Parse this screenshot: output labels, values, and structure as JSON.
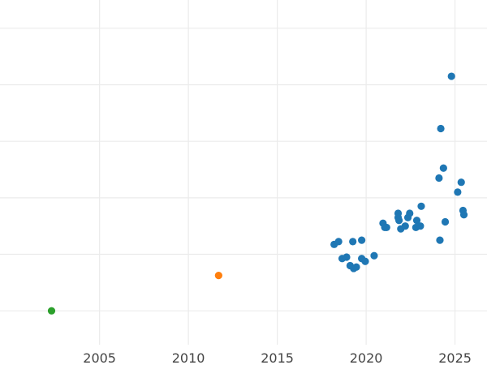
{
  "chart_data": {
    "type": "scatter",
    "xlim": [
      1999.4,
      2026.8
    ],
    "ylim": [
      -1.2,
      11
    ],
    "grid": true,
    "x_ticks": [
      2005,
      2010,
      2015,
      2020,
      2025
    ],
    "x_tick_labels": [
      "2005",
      "2010",
      "2015",
      "2020",
      "2025"
    ],
    "y_gridlines": [
      0,
      2,
      4,
      6,
      8,
      10
    ],
    "series": [
      {
        "color": "#1f77b4",
        "points": [
          {
            "x": 2018.2,
            "y": 2.35
          },
          {
            "x": 2018.45,
            "y": 2.45
          },
          {
            "x": 2018.65,
            "y": 1.85
          },
          {
            "x": 2018.9,
            "y": 1.9
          },
          {
            "x": 2019.1,
            "y": 1.6
          },
          {
            "x": 2019.25,
            "y": 2.45
          },
          {
            "x": 2019.3,
            "y": 1.5
          },
          {
            "x": 2019.45,
            "y": 1.55
          },
          {
            "x": 2019.75,
            "y": 1.85
          },
          {
            "x": 2019.75,
            "y": 2.5
          },
          {
            "x": 2019.95,
            "y": 1.75
          },
          {
            "x": 2020.45,
            "y": 1.95
          },
          {
            "x": 2020.95,
            "y": 3.1
          },
          {
            "x": 2021.05,
            "y": 2.95
          },
          {
            "x": 2021.15,
            "y": 2.95
          },
          {
            "x": 2021.8,
            "y": 3.45
          },
          {
            "x": 2021.8,
            "y": 3.3
          },
          {
            "x": 2021.85,
            "y": 3.2
          },
          {
            "x": 2021.95,
            "y": 2.9
          },
          {
            "x": 2022.2,
            "y": 3.0
          },
          {
            "x": 2022.35,
            "y": 3.3
          },
          {
            "x": 2022.45,
            "y": 3.45
          },
          {
            "x": 2022.8,
            "y": 2.95
          },
          {
            "x": 2022.85,
            "y": 3.2
          },
          {
            "x": 2023.05,
            "y": 3.0
          },
          {
            "x": 2023.1,
            "y": 3.7
          },
          {
            "x": 2024.1,
            "y": 4.7
          },
          {
            "x": 2024.15,
            "y": 2.5
          },
          {
            "x": 2024.2,
            "y": 6.45
          },
          {
            "x": 2024.35,
            "y": 5.05
          },
          {
            "x": 2024.45,
            "y": 3.15
          },
          {
            "x": 2024.8,
            "y": 8.3
          },
          {
            "x": 2025.15,
            "y": 4.2
          },
          {
            "x": 2025.35,
            "y": 4.55
          },
          {
            "x": 2025.45,
            "y": 3.55
          },
          {
            "x": 2025.5,
            "y": 3.4
          }
        ]
      },
      {
        "color": "#ff7f0e",
        "points": [
          {
            "x": 2011.7,
            "y": 1.25
          }
        ]
      },
      {
        "color": "#2ca02c",
        "points": [
          {
            "x": 2002.3,
            "y": 0.0
          }
        ]
      }
    ]
  }
}
